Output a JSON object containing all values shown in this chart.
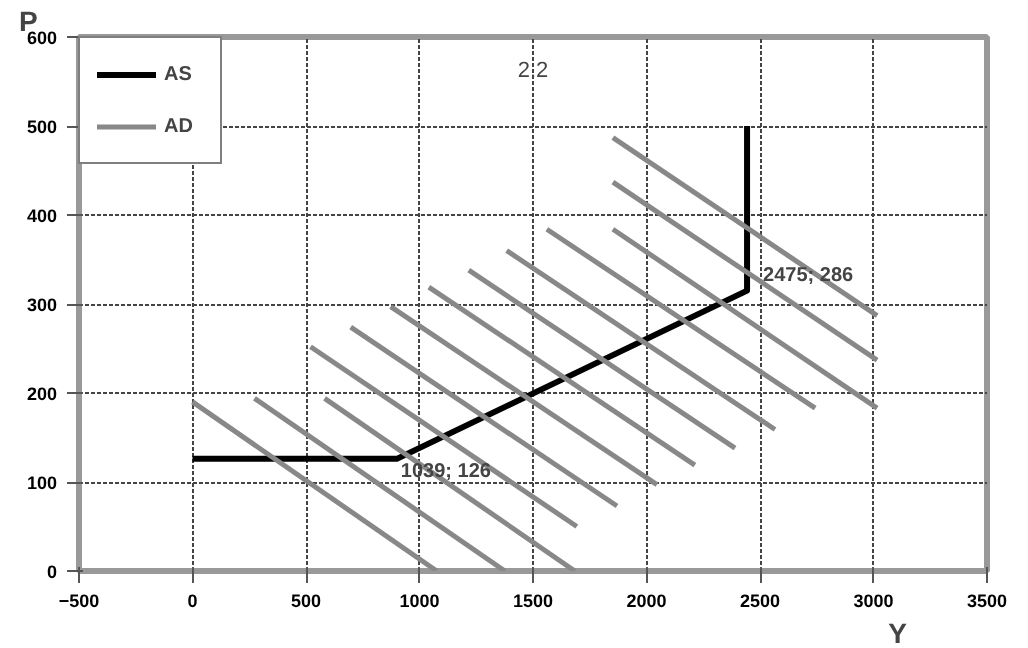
{
  "chart_data": {
    "type": "line",
    "title": "2.2",
    "xlabel": "Y",
    "ylabel": "P",
    "xlim": [
      -500,
      3500
    ],
    "ylim": [
      0,
      600
    ],
    "xticks": [
      -500,
      0,
      500,
      1000,
      1500,
      2000,
      2500,
      3000,
      3500
    ],
    "yticks": [
      0,
      100,
      200,
      300,
      400,
      500,
      600
    ],
    "grid": true,
    "legend": "top left",
    "annotations": [
      {
        "text": "1039; 126",
        "x": 900,
        "y": 126
      },
      {
        "text": "2475; 286",
        "x": 2443,
        "y": 315
      }
    ],
    "series": [
      {
        "name": "AS",
        "color": "#000000",
        "x": [
          0,
          900,
          2443,
          2443
        ],
        "values": [
          126,
          126,
          315,
          500
        ]
      },
      {
        "name": "AD",
        "color": "#888888",
        "x": [
          0,
          1076
        ],
        "values": [
          190,
          0
        ]
      },
      {
        "color": "#888888",
        "x": [
          273,
          1376
        ],
        "values": [
          194,
          0
        ]
      },
      {
        "color": "#888888",
        "x": [
          582,
          1684
        ],
        "values": [
          194,
          0
        ]
      },
      {
        "color": "#888888",
        "x": [
          520,
          1693
        ],
        "values": [
          252,
          50
        ]
      },
      {
        "color": "#888888",
        "x": [
          697,
          1870
        ],
        "values": [
          274,
          73
        ]
      },
      {
        "color": "#888888",
        "x": [
          873,
          2046
        ],
        "values": [
          297,
          97
        ]
      },
      {
        "color": "#888888",
        "x": [
          1041,
          2213
        ],
        "values": [
          319,
          119
        ]
      },
      {
        "color": "#888888",
        "x": [
          1217,
          2390
        ],
        "values": [
          338,
          138
        ]
      },
      {
        "color": "#888888",
        "x": [
          1384,
          2566
        ],
        "values": [
          360,
          159
        ]
      },
      {
        "color": "#888888",
        "x": [
          1561,
          2743
        ],
        "values": [
          384,
          183
        ]
      },
      {
        "color": "#888888",
        "x": [
          1852,
          3016
        ],
        "values": [
          384,
          183
        ]
      },
      {
        "color": "#888888",
        "x": [
          1852,
          3016
        ],
        "values": [
          437,
          237
        ]
      },
      {
        "color": "#888888",
        "x": [
          1852,
          3016
        ],
        "values": [
          487,
          287
        ]
      }
    ]
  }
}
